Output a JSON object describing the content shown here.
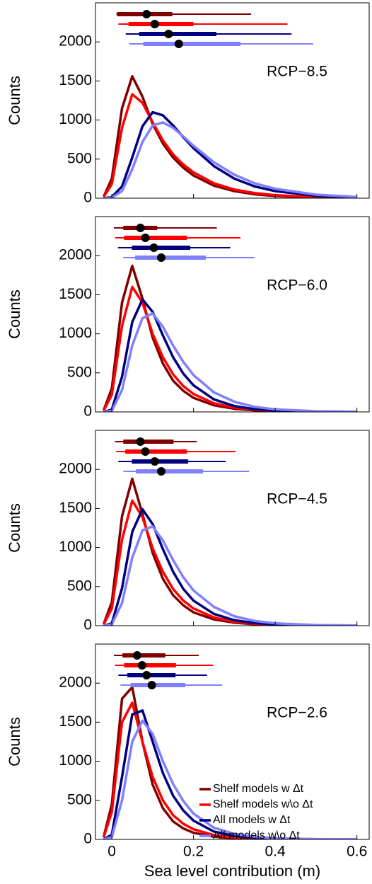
{
  "chart_data": [
    {
      "type": "line",
      "annotation": "RCP−8.5",
      "y_label": "Counts",
      "x": [
        -0.02,
        0,
        0.025,
        0.05,
        0.075,
        0.1,
        0.125,
        0.15,
        0.175,
        0.2,
        0.25,
        0.3,
        0.35,
        0.4,
        0.5,
        0.6
      ],
      "xlim": [
        -0.04,
        0.63
      ],
      "xticks": [
        0,
        0.2,
        0.4,
        0.6
      ],
      "ylim": [
        0,
        2500
      ],
      "yticks": [
        0,
        500,
        1000,
        1500,
        2000
      ],
      "series": [
        {
          "color": "#800000",
          "values": [
            20,
            250,
            1150,
            1560,
            1300,
            950,
            700,
            520,
            390,
            290,
            160,
            90,
            50,
            28,
            8,
            2
          ],
          "summary": {
            "whisker_low": 0.011,
            "box_low": 0.013,
            "median": 0.085,
            "box_high": 0.148,
            "whisker_high": 0.341
          }
        },
        {
          "color": "#ff0000",
          "values": [
            15,
            180,
            900,
            1330,
            1220,
            970,
            740,
            560,
            430,
            330,
            190,
            110,
            65,
            38,
            12,
            4
          ],
          "summary": {
            "whisker_low": 0.016,
            "box_low": 0.041,
            "median": 0.105,
            "box_high": 0.2,
            "whisker_high": 0.43
          }
        },
        {
          "color": "#00007f",
          "values": [
            0,
            15,
            150,
            520,
            920,
            1100,
            1060,
            930,
            780,
            640,
            410,
            250,
            150,
            90,
            30,
            10
          ],
          "summary": {
            "whisker_low": 0.034,
            "box_low": 0.067,
            "median": 0.139,
            "box_high": 0.256,
            "whisker_high": 0.44
          }
        },
        {
          "color": "#8080ff",
          "values": [
            0,
            8,
            90,
            370,
            720,
            930,
            970,
            900,
            790,
            670,
            460,
            300,
            190,
            120,
            45,
            15
          ],
          "summary": {
            "whisker_low": 0.043,
            "box_low": 0.077,
            "median": 0.164,
            "box_high": 0.315,
            "whisker_high": 0.493
          }
        }
      ]
    },
    {
      "type": "line",
      "annotation": "RCP−6.0",
      "y_label": "Counts",
      "x": [
        -0.02,
        0,
        0.025,
        0.05,
        0.075,
        0.1,
        0.125,
        0.15,
        0.175,
        0.2,
        0.25,
        0.3,
        0.35,
        0.4,
        0.5,
        0.6
      ],
      "xlim": [
        -0.04,
        0.63
      ],
      "xticks": [
        0,
        0.2,
        0.4,
        0.6
      ],
      "ylim": [
        0,
        2500
      ],
      "yticks": [
        0,
        500,
        1000,
        1500,
        2000
      ],
      "series": [
        {
          "color": "#800000",
          "values": [
            20,
            300,
            1400,
            1870,
            1450,
            950,
            620,
            400,
            270,
            180,
            85,
            40,
            20,
            10,
            3,
            1
          ],
          "summary": {
            "whisker_low": 0.005,
            "box_low": 0.028,
            "median": 0.07,
            "box_high": 0.111,
            "whisker_high": 0.257
          }
        },
        {
          "color": "#ff0000",
          "values": [
            15,
            220,
            1100,
            1600,
            1400,
            1000,
            700,
            480,
            330,
            230,
            110,
            55,
            28,
            15,
            4,
            1
          ],
          "summary": {
            "whisker_low": 0.008,
            "box_low": 0.03,
            "median": 0.082,
            "box_high": 0.184,
            "whisker_high": 0.315
          }
        },
        {
          "color": "#00007f",
          "values": [
            0,
            30,
            450,
            1150,
            1440,
            1280,
            980,
            700,
            490,
            340,
            160,
            75,
            35,
            18,
            5,
            1
          ],
          "summary": {
            "whisker_low": 0.015,
            "box_low": 0.049,
            "median": 0.103,
            "box_high": 0.192,
            "whisker_high": 0.29
          }
        },
        {
          "color": "#8080ff",
          "values": [
            0,
            15,
            280,
            850,
            1200,
            1260,
            1090,
            850,
            640,
            470,
            250,
            130,
            65,
            33,
            9,
            2
          ],
          "summary": {
            "whisker_low": 0.028,
            "box_low": 0.057,
            "median": 0.121,
            "box_high": 0.23,
            "whisker_high": 0.349
          }
        }
      ]
    },
    {
      "type": "line",
      "annotation": "RCP−4.5",
      "y_label": "Counts",
      "x": [
        -0.02,
        0,
        0.025,
        0.05,
        0.075,
        0.1,
        0.125,
        0.15,
        0.175,
        0.2,
        0.25,
        0.3,
        0.35,
        0.4,
        0.5,
        0.6
      ],
      "xlim": [
        -0.04,
        0.63
      ],
      "xticks": [
        0,
        0.2,
        0.4,
        0.6
      ],
      "ylim": [
        0,
        2500
      ],
      "yticks": [
        0,
        500,
        1000,
        1500,
        2000
      ],
      "series": [
        {
          "color": "#800000",
          "values": [
            20,
            300,
            1400,
            1880,
            1430,
            930,
            600,
            390,
            260,
            170,
            80,
            38,
            18,
            9,
            2,
            1
          ],
          "summary": {
            "whisker_low": 0.008,
            "box_low": 0.028,
            "median": 0.07,
            "box_high": 0.151,
            "whisker_high": 0.208
          }
        },
        {
          "color": "#ff0000",
          "values": [
            15,
            220,
            1100,
            1600,
            1390,
            990,
            690,
            470,
            320,
            220,
            105,
            50,
            25,
            13,
            3,
            1
          ],
          "summary": {
            "whisker_low": 0.011,
            "box_low": 0.033,
            "median": 0.082,
            "box_high": 0.184,
            "whisker_high": 0.303
          }
        },
        {
          "color": "#00007f",
          "values": [
            0,
            30,
            480,
            1200,
            1490,
            1300,
            980,
            690,
            470,
            320,
            150,
            70,
            33,
            16,
            4,
            1
          ],
          "summary": {
            "whisker_low": 0.016,
            "box_low": 0.049,
            "median": 0.105,
            "box_high": 0.187,
            "whisker_high": 0.279
          }
        },
        {
          "color": "#8080ff",
          "values": [
            0,
            15,
            290,
            870,
            1220,
            1270,
            1090,
            840,
            620,
            450,
            240,
            120,
            60,
            30,
            8,
            2
          ],
          "summary": {
            "whisker_low": 0.028,
            "box_low": 0.059,
            "median": 0.121,
            "box_high": 0.223,
            "whisker_high": 0.336
          }
        }
      ]
    },
    {
      "type": "line",
      "annotation": "RCP−2.6",
      "y_label": "Counts",
      "x_label": "Sea level contribution (m)",
      "x": [
        -0.02,
        0,
        0.025,
        0.05,
        0.075,
        0.1,
        0.125,
        0.15,
        0.175,
        0.2,
        0.25,
        0.3,
        0.35,
        0.4,
        0.5,
        0.6
      ],
      "xlim": [
        -0.04,
        0.63
      ],
      "xticks": [
        0,
        0.2,
        0.4,
        0.6
      ],
      "ylim": [
        0,
        2500
      ],
      "yticks": [
        0,
        500,
        1000,
        1500,
        2000
      ],
      "legend": "lower right",
      "series": [
        {
          "name": "Shelf models w Δt",
          "color": "#800000",
          "values": [
            30,
            450,
            1800,
            1950,
            1250,
            700,
            400,
            230,
            140,
            85,
            35,
            15,
            7,
            3,
            1,
            0
          ],
          "summary": {
            "whisker_low": 0.005,
            "box_low": 0.026,
            "median": 0.062,
            "box_high": 0.131,
            "whisker_high": 0.213
          }
        },
        {
          "name": "Shelf models w\\o Δt",
          "color": "#ff0000",
          "values": [
            25,
            350,
            1500,
            1750,
            1250,
            800,
            500,
            310,
            200,
            130,
            55,
            25,
            12,
            6,
            1,
            0
          ],
          "summary": {
            "whisker_low": 0.008,
            "box_low": 0.03,
            "median": 0.074,
            "box_high": 0.157,
            "whisker_high": 0.248
          }
        },
        {
          "name": "All models w Δt",
          "color": "#00007f",
          "values": [
            0,
            60,
            800,
            1600,
            1650,
            1250,
            850,
            560,
            370,
            240,
            100,
            45,
            20,
            9,
            2,
            0
          ],
          "summary": {
            "whisker_low": 0.016,
            "box_low": 0.038,
            "median": 0.085,
            "box_high": 0.156,
            "whisker_high": 0.233
          }
        },
        {
          "name": "All models w\\o Δt",
          "color": "#8080ff",
          "values": [
            0,
            30,
            500,
            1250,
            1520,
            1350,
            1000,
            710,
            490,
            330,
            150,
            70,
            33,
            15,
            3,
            1
          ],
          "summary": {
            "whisker_low": 0.021,
            "box_low": 0.046,
            "median": 0.098,
            "box_high": 0.18,
            "whisker_high": 0.27
          }
        }
      ]
    }
  ]
}
